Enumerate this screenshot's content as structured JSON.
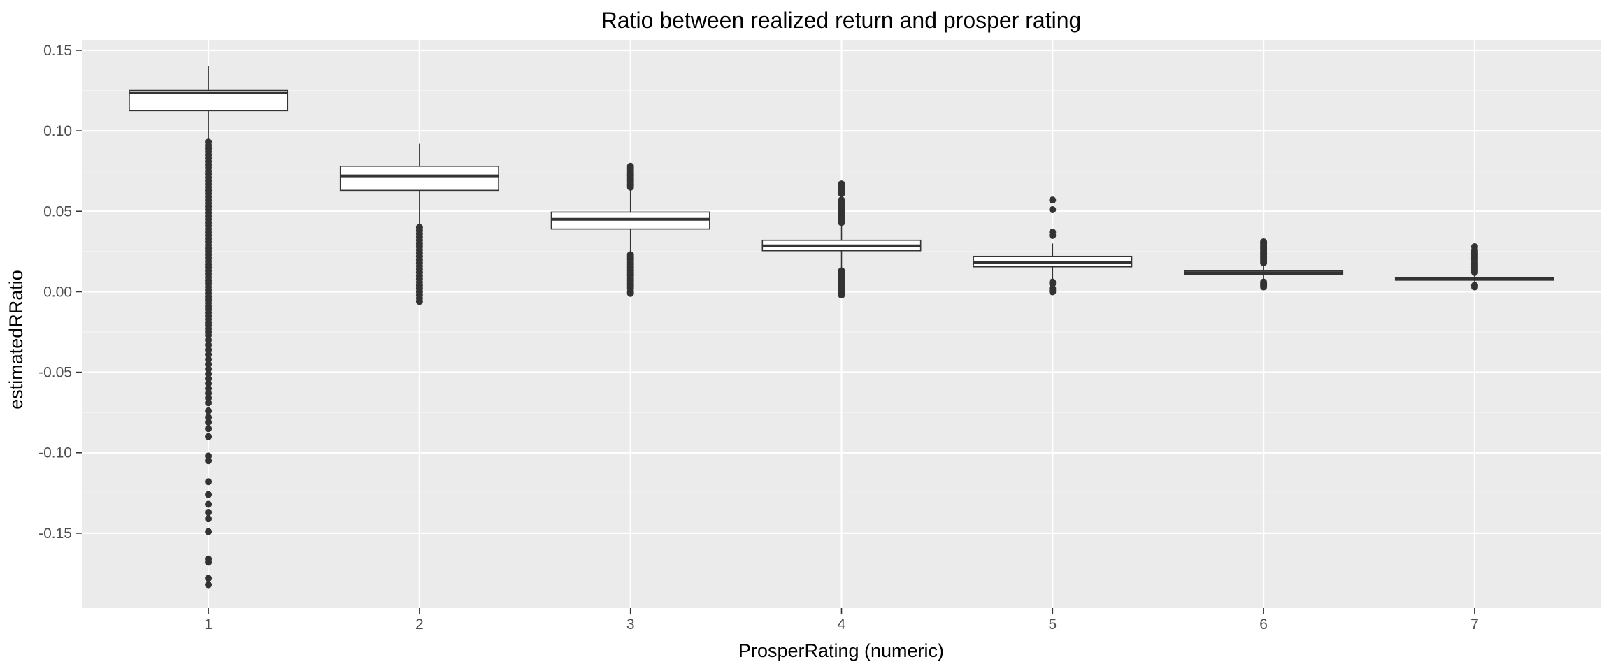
{
  "chart_data": {
    "type": "boxplot",
    "title": "Ratio between realized return and prosper rating",
    "xlabel": "ProsperRating (numeric)",
    "ylabel": "estimatedRRatio",
    "categories": [
      "1",
      "2",
      "3",
      "4",
      "5",
      "6",
      "7"
    ],
    "x_ticks": [
      "1",
      "2",
      "3",
      "4",
      "5",
      "6",
      "7"
    ],
    "y_ticks": [
      {
        "value": 0.15,
        "label": "0.15"
      },
      {
        "value": 0.1,
        "label": "0.10"
      },
      {
        "value": 0.05,
        "label": "0.05"
      },
      {
        "value": 0.0,
        "label": "0.00"
      },
      {
        "value": -0.05,
        "label": "-0.05"
      },
      {
        "value": -0.1,
        "label": "-0.10"
      },
      {
        "value": -0.15,
        "label": "-0.15"
      }
    ],
    "xlim": [
      0.4,
      7.6
    ],
    "ylim": [
      -0.1965,
      0.1565
    ],
    "grid": true,
    "legend": "none",
    "colors": {
      "panel_background": "#ebebeb",
      "grid_major": "#ffffff",
      "grid_minor": "#f5f5f5",
      "box_fill": "#ffffff",
      "box_line": "#333333",
      "outlier": "#333333"
    },
    "boxes": [
      {
        "x": 1,
        "whisker_low": 0.095,
        "q1": 0.1125,
        "median": 0.1235,
        "q3": 0.125,
        "whisker_high": 0.14,
        "outliers": [
          0.093,
          0.091,
          0.089,
          0.087,
          0.085,
          0.083,
          0.081,
          0.079,
          0.077,
          0.075,
          0.073,
          0.071,
          0.069,
          0.067,
          0.065,
          0.063,
          0.061,
          0.059,
          0.057,
          0.055,
          0.053,
          0.051,
          0.049,
          0.047,
          0.045,
          0.043,
          0.041,
          0.039,
          0.037,
          0.035,
          0.033,
          0.031,
          0.029,
          0.027,
          0.025,
          0.023,
          0.021,
          0.019,
          0.017,
          0.015,
          0.013,
          0.011,
          0.009,
          0.007,
          0.005,
          0.003,
          0.001,
          -0.001,
          -0.003,
          -0.005,
          -0.007,
          -0.009,
          -0.011,
          -0.013,
          -0.015,
          -0.017,
          -0.019,
          -0.021,
          -0.023,
          -0.025,
          -0.027,
          -0.03,
          -0.033,
          -0.036,
          -0.039,
          -0.042,
          -0.045,
          -0.048,
          -0.051,
          -0.054,
          -0.057,
          -0.06,
          -0.063,
          -0.066,
          -0.069,
          -0.074,
          -0.078,
          -0.081,
          -0.085,
          -0.09,
          -0.102,
          -0.105,
          -0.118,
          -0.126,
          -0.132,
          -0.137,
          -0.141,
          -0.149,
          -0.166,
          -0.168,
          -0.178,
          -0.182
        ]
      },
      {
        "x": 2,
        "whisker_low": 0.0405,
        "q1": 0.063,
        "median": 0.072,
        "q3": 0.078,
        "whisker_high": 0.092,
        "outliers": [
          0.04,
          0.038,
          0.036,
          0.034,
          0.032,
          0.03,
          0.028,
          0.026,
          0.024,
          0.022,
          0.02,
          0.018,
          0.016,
          0.014,
          0.012,
          0.01,
          0.008,
          0.006,
          0.004,
          0.002,
          0.0,
          -0.002,
          -0.004,
          -0.006
        ]
      },
      {
        "x": 3,
        "whisker_low": 0.024,
        "q1": 0.039,
        "median": 0.045,
        "q3": 0.0495,
        "whisker_high": 0.064,
        "outliers": [
          0.078,
          0.077,
          0.076,
          0.075,
          0.074,
          0.073,
          0.072,
          0.071,
          0.07,
          0.069,
          0.068,
          0.067,
          0.066,
          0.065,
          0.023,
          0.022,
          0.021,
          0.02,
          0.019,
          0.018,
          0.017,
          0.016,
          0.015,
          0.014,
          0.013,
          0.012,
          0.011,
          0.01,
          0.009,
          0.008,
          0.007,
          0.006,
          0.005,
          0.004,
          0.003,
          0.002,
          0.0,
          -0.001
        ]
      },
      {
        "x": 4,
        "whisker_low": 0.015,
        "q1": 0.0255,
        "median": 0.0285,
        "q3": 0.032,
        "whisker_high": 0.042,
        "outliers": [
          0.067,
          0.065,
          0.063,
          0.061,
          0.057,
          0.055,
          0.054,
          0.053,
          0.052,
          0.051,
          0.05,
          0.049,
          0.048,
          0.047,
          0.046,
          0.045,
          0.044,
          0.043,
          0.013,
          0.012,
          0.011,
          0.01,
          0.009,
          0.008,
          0.007,
          0.006,
          0.005,
          0.004,
          0.003,
          0.002,
          0.001,
          0.0,
          -0.001,
          -0.002
        ]
      },
      {
        "x": 5,
        "whisker_low": 0.008,
        "q1": 0.0155,
        "median": 0.018,
        "q3": 0.022,
        "whisker_high": 0.03,
        "outliers": [
          0.057,
          0.051,
          0.037,
          0.035,
          0.006,
          0.005,
          0.002,
          0.001,
          0.0
        ]
      },
      {
        "x": 6,
        "whisker_low": 0.007,
        "q1": 0.0108,
        "median": 0.0118,
        "q3": 0.013,
        "whisker_high": 0.017,
        "outliers": [
          0.031,
          0.03,
          0.029,
          0.028,
          0.027,
          0.026,
          0.025,
          0.024,
          0.023,
          0.022,
          0.021,
          0.02,
          0.019,
          0.018,
          0.006,
          0.005,
          0.004,
          0.003
        ]
      },
      {
        "x": 7,
        "whisker_low": 0.005,
        "q1": 0.0072,
        "median": 0.008,
        "q3": 0.0088,
        "whisker_high": 0.011,
        "outliers": [
          0.028,
          0.026,
          0.025,
          0.024,
          0.023,
          0.022,
          0.021,
          0.02,
          0.019,
          0.018,
          0.017,
          0.016,
          0.015,
          0.014,
          0.013,
          0.012,
          0.004,
          0.003
        ]
      }
    ]
  }
}
